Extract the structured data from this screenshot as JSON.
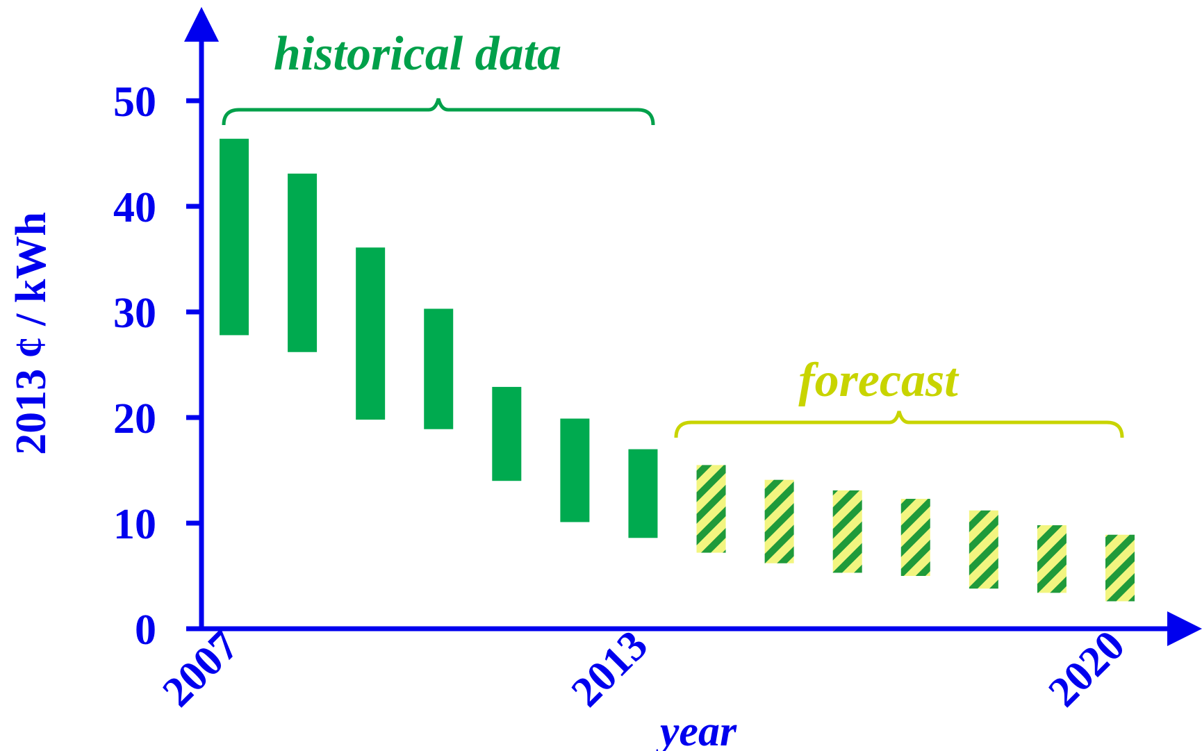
{
  "chart_data": {
    "type": "bar",
    "subtype": "floating-range",
    "ylabel": "2013 ¢ / kWh",
    "xlabel": "year",
    "ylim": [
      0,
      50
    ],
    "yticks": [
      0,
      10,
      20,
      30,
      40,
      50
    ],
    "xtick_labels": [
      "2007",
      "2013",
      "2020"
    ],
    "grid": false,
    "colors": {
      "axis": "#0000ee",
      "historical": "#00aa4f",
      "historical_label": "#00a04a",
      "forecast_stripe_a": "#f2f580",
      "forecast_stripe_b": "#1f9a3a",
      "forecast_label": "#c8d400"
    },
    "regions": [
      {
        "label": "historical data",
        "from": 2007,
        "to": 2013
      },
      {
        "label": "forecast",
        "from": 2014,
        "to": 2020
      }
    ],
    "series": [
      {
        "name": "historical",
        "style": "solid",
        "x": [
          2007,
          2008,
          2009,
          2010,
          2011,
          2012,
          2013
        ],
        "low": [
          27.8,
          26.2,
          19.8,
          18.9,
          14.0,
          10.1,
          8.6
        ],
        "high": [
          46.4,
          43.1,
          36.1,
          30.3,
          22.9,
          19.9,
          17.0
        ]
      },
      {
        "name": "forecast",
        "style": "hatched",
        "x": [
          2014,
          2015,
          2016,
          2017,
          2018,
          2019,
          2020
        ],
        "low": [
          7.2,
          6.2,
          5.3,
          5.0,
          3.8,
          3.4,
          2.6
        ],
        "high": [
          15.5,
          14.1,
          13.1,
          12.3,
          11.2,
          9.8,
          8.9
        ]
      }
    ]
  }
}
